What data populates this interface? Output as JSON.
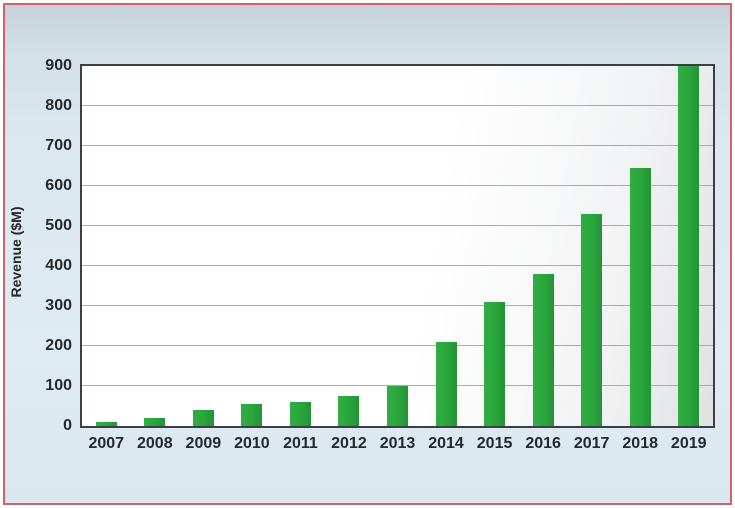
{
  "chart_data": {
    "type": "bar",
    "title": "",
    "xlabel": "",
    "ylabel": "Revenue ($M)",
    "categories": [
      "2007",
      "2008",
      "2009",
      "2010",
      "2011",
      "2012",
      "2013",
      "2014",
      "2015",
      "2016",
      "2017",
      "2018",
      "2019"
    ],
    "values": [
      10,
      20,
      40,
      55,
      60,
      75,
      100,
      210,
      310,
      380,
      530,
      645,
      900
    ],
    "ylim": [
      0,
      900
    ],
    "yticks": [
      0,
      100,
      200,
      300,
      400,
      500,
      600,
      700,
      800,
      900
    ],
    "grid": true,
    "legend": null
  },
  "colors": {
    "bar_green": "#2aa53c",
    "border_red": "#d2626a",
    "panel_blue": "#dce8ef",
    "frame_dark": "#3a3f45",
    "gridline_gray": "#a7adb3",
    "text_dark": "#26282b"
  }
}
